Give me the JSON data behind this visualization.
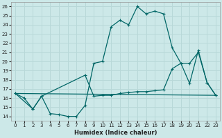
{
  "xlabel": "Humidex (Indice chaleur)",
  "bg_color": "#cce8e8",
  "grid_color": "#b8d8d8",
  "line_color": "#006666",
  "xlim": [
    -0.5,
    23.5
  ],
  "ylim": [
    13.5,
    26.5
  ],
  "yticks": [
    14,
    15,
    16,
    17,
    18,
    19,
    20,
    21,
    22,
    23,
    24,
    25,
    26
  ],
  "xticks": [
    0,
    1,
    2,
    3,
    4,
    5,
    6,
    7,
    8,
    9,
    10,
    11,
    12,
    13,
    14,
    15,
    16,
    17,
    18,
    19,
    20,
    21,
    22,
    23
  ],
  "curve1_x": [
    0,
    1,
    2,
    3,
    4,
    5,
    6,
    7,
    8,
    9,
    10,
    11,
    12,
    13,
    14,
    15,
    16,
    17,
    18,
    19,
    20,
    21,
    22,
    23
  ],
  "curve1_y": [
    16.5,
    16.0,
    14.8,
    16.2,
    14.3,
    14.2,
    14.0,
    14.0,
    15.2,
    19.8,
    20.0,
    23.8,
    24.5,
    24.0,
    26.0,
    25.2,
    25.5,
    25.2,
    21.5,
    19.8,
    17.6,
    21.2,
    17.7,
    16.3
  ],
  "curve2_x": [
    0,
    2,
    3,
    8,
    9,
    10,
    11,
    12,
    13,
    14,
    15,
    16,
    17,
    18,
    19,
    20,
    21,
    22,
    23
  ],
  "curve2_y": [
    16.5,
    14.8,
    16.2,
    18.5,
    16.2,
    16.3,
    16.3,
    16.5,
    16.6,
    16.7,
    16.7,
    16.8,
    16.9,
    19.2,
    19.8,
    19.8,
    21.0,
    17.7,
    16.3
  ],
  "curve3_x": [
    0,
    23
  ],
  "curve3_y": [
    16.5,
    16.3
  ]
}
